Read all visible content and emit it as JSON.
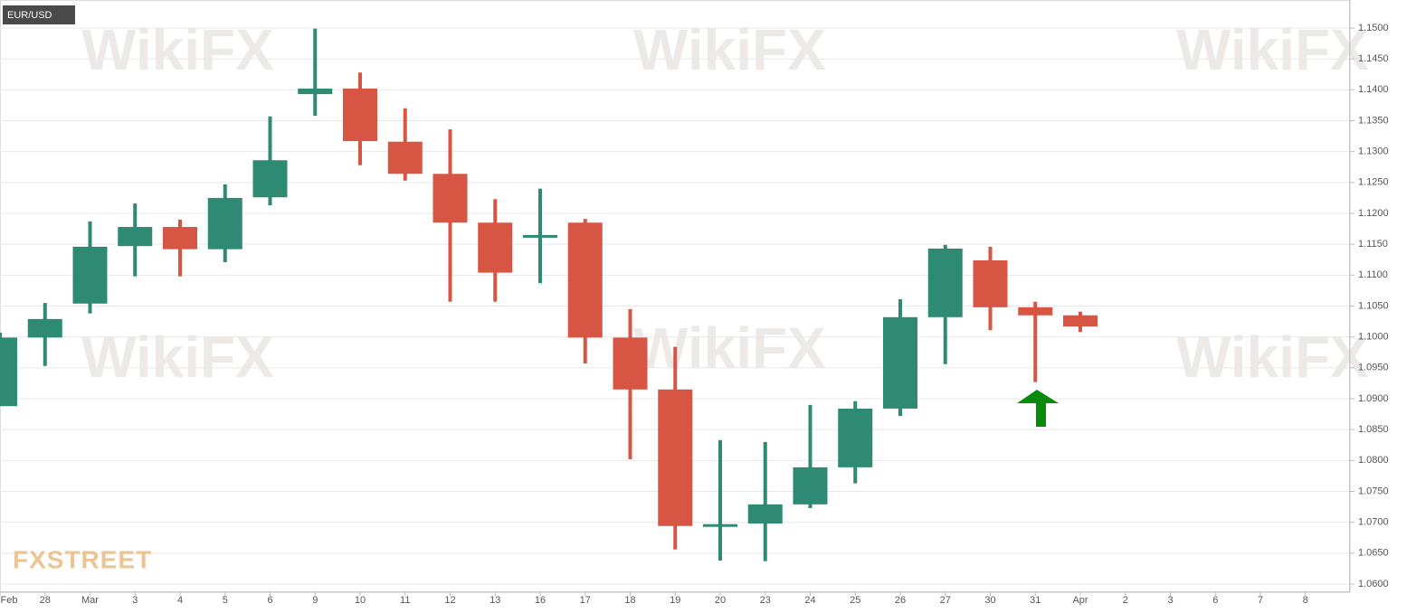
{
  "chart_data": {
    "type": "candlestick",
    "title": "EUR/USD",
    "watermark": "WikiFX",
    "logo": "FXSTREET",
    "categories": [
      "Feb",
      "28",
      "Mar",
      "3",
      "4",
      "5",
      "6",
      "9",
      "10",
      "11",
      "12",
      "13",
      "16",
      "17",
      "18",
      "19",
      "20",
      "23",
      "24",
      "25",
      "26",
      "27",
      "30",
      "31",
      "Apr",
      "2",
      "3",
      "6",
      "7",
      "8"
    ],
    "open": [
      1.0888,
      1.0999,
      1.1054,
      1.1147,
      1.1178,
      1.1142,
      1.1226,
      1.1393,
      1.1402,
      1.1316,
      1.1264,
      1.1185,
      1.1161,
      1.1185,
      1.0999,
      1.0915,
      1.0694,
      1.0698,
      1.0729,
      1.0789,
      1.0884,
      1.1032,
      1.1124,
      1.1048,
      1.1035,
      null,
      null,
      null,
      null,
      null
    ],
    "high": [
      1.1007,
      1.1055,
      1.1187,
      1.1216,
      1.119,
      1.1247,
      1.1357,
      1.1499,
      1.1428,
      1.137,
      1.1336,
      1.1223,
      1.124,
      1.1191,
      1.1045,
      1.0984,
      1.0833,
      1.083,
      1.089,
      1.0896,
      1.1061,
      1.1149,
      1.1146,
      1.1057,
      1.1041,
      null,
      null,
      null,
      null,
      null
    ],
    "low": [
      1.0888,
      1.0953,
      1.1038,
      1.1098,
      1.1098,
      1.1121,
      1.1213,
      1.1358,
      1.1278,
      1.1253,
      1.1057,
      1.1057,
      1.1087,
      1.0957,
      1.0802,
      1.0656,
      1.0638,
      1.0637,
      1.0723,
      1.0763,
      1.0872,
      1.0956,
      1.1011,
      1.0927,
      1.1008,
      null,
      null,
      null,
      null,
      null
    ],
    "close": [
      1.0999,
      1.1029,
      1.1146,
      1.1178,
      1.1142,
      1.1225,
      1.1286,
      1.1402,
      1.1317,
      1.1264,
      1.1185,
      1.1104,
      1.1165,
      1.0999,
      1.0915,
      1.0694,
      1.0697,
      1.0729,
      1.0789,
      1.0884,
      1.1032,
      1.1143,
      1.1048,
      1.1035,
      1.1017,
      null,
      null,
      null,
      null,
      null
    ],
    "up_color": "#2f8a74",
    "down_color": "#d75643",
    "ylim": [
      1.06,
      1.15
    ],
    "yticks": [
      {
        "value": 1.06,
        "label": "1.0600"
      },
      {
        "value": 1.065,
        "label": "1.0650"
      },
      {
        "value": 1.07,
        "label": "1.0700"
      },
      {
        "value": 1.075,
        "label": "1.0750"
      },
      {
        "value": 1.08,
        "label": "1.0800"
      },
      {
        "value": 1.085,
        "label": "1.0850"
      },
      {
        "value": 1.09,
        "label": "1.0900"
      },
      {
        "value": 1.095,
        "label": "1.0950"
      },
      {
        "value": 1.1,
        "label": "1.1000"
      },
      {
        "value": 1.105,
        "label": "1.1050"
      },
      {
        "value": 1.11,
        "label": "1.1100"
      },
      {
        "value": 1.115,
        "label": "1.1150"
      },
      {
        "value": 1.12,
        "label": "1.1200"
      },
      {
        "value": 1.125,
        "label": "1.1250"
      },
      {
        "value": 1.13,
        "label": "1.1300"
      },
      {
        "value": 1.135,
        "label": "1.1350"
      },
      {
        "value": 1.14,
        "label": "1.1400"
      },
      {
        "value": 1.145,
        "label": "1.1450"
      },
      {
        "value": 1.15,
        "label": "1.1500"
      }
    ],
    "grid": true
  }
}
